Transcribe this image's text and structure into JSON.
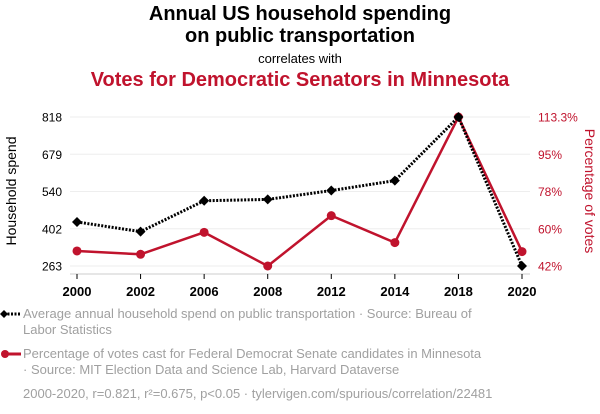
{
  "header": {
    "title_line1": "Annual US household spending",
    "title_line2": "on public transportation",
    "correlates": "correlates with",
    "subtitle": "Votes for Democratic Senators in Minnesota"
  },
  "colors": {
    "series1": "#000000",
    "series2": "#c0132d",
    "grid": "#eeeeee",
    "axis": "#cccccc",
    "legend_text": "#a0a0a0"
  },
  "legend": {
    "items": [
      {
        "line1": "Average annual household spend on public transportation · Source: Bureau of",
        "line2": "Labor Statistics"
      },
      {
        "line1": "Percentage of votes cast for Federal Democrat Senate candidates in Minnesota",
        "line2": "· Source: MIT Election Data and Science Lab, Harvard Dataverse"
      }
    ]
  },
  "footer": {
    "text": "2000-2020, r=0.821, r²=0.675, p<0.05 · tylervigen.com/spurious/correlation/22481"
  },
  "chart_data": {
    "type": "line",
    "title": "Annual US household spending on public transportation correlates with Votes for Democratic Senators in Minnesota",
    "categories": [
      "2000",
      "2002",
      "2006",
      "2008",
      "2012",
      "2014",
      "2018",
      "2020"
    ],
    "xlabel": "",
    "y_left": {
      "label": "Household spend",
      "ticks": [
        "818",
        "679",
        "540",
        "402",
        "263"
      ],
      "range": [
        263,
        818
      ]
    },
    "y_right": {
      "label": "Percentage of votes",
      "ticks": [
        "113.3%",
        "95%",
        "78%",
        "60%",
        "42%"
      ],
      "range": [
        42,
        113.3
      ]
    },
    "grid": true,
    "series": [
      {
        "name": "Average annual household spend on public transportation",
        "axis": "left",
        "style": "dotted",
        "marker": "diamond",
        "values": [
          427,
          391,
          506,
          511,
          544,
          581,
          818,
          263
        ]
      },
      {
        "name": "Percentage of votes cast for Federal Democrat Senate candidates in Minnesota",
        "axis": "right",
        "style": "solid",
        "marker": "circle",
        "values": [
          49.2,
          47.6,
          58.1,
          42.0,
          66.1,
          53.2,
          113.3,
          48.9
        ]
      }
    ]
  }
}
